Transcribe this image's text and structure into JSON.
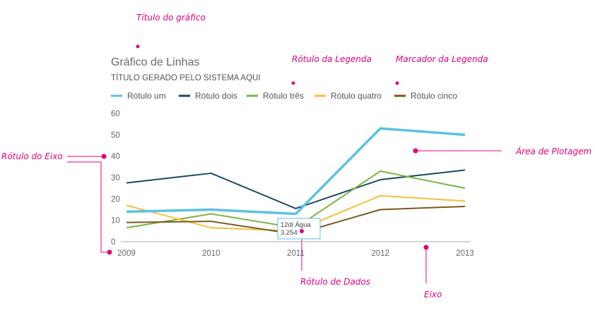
{
  "annotations": {
    "chart_title": "Título do gráfico",
    "legend_label": "Rótulo da Legenda",
    "legend_marker": "Marcador da Legenda",
    "axis_label": "Rótulo do Eixo",
    "plot_area": "Área de Plotagem",
    "data_label": "Rótulo de Dados",
    "axis": "Eixo"
  },
  "annotation_color": "#e4007c",
  "chart_data": {
    "type": "line",
    "title": "Gráfico de Linhas",
    "subtitle": "TÍTULO GERADO PELO SISTEMA AQUI",
    "categories": [
      "2009",
      "2010",
      "2011",
      "2012",
      "2013"
    ],
    "ylim": [
      0,
      60
    ],
    "yticks": [
      0,
      10,
      20,
      30,
      40,
      50,
      60
    ],
    "grid": false,
    "legend_position": "top",
    "series": [
      {
        "name": "Rótulo um",
        "color": "#5bc2e0",
        "values": [
          14,
          15,
          13,
          53,
          50
        ],
        "emphasis": true
      },
      {
        "name": "Rótulo dois",
        "color": "#1e4a5e",
        "values": [
          27.5,
          32,
          15.5,
          29,
          33.5
        ]
      },
      {
        "name": "Rótulo três",
        "color": "#7cb342",
        "values": [
          6.5,
          13,
          6.5,
          33,
          25
        ]
      },
      {
        "name": "Rótulo quatro",
        "color": "#f5c13a",
        "values": [
          17,
          6.5,
          5,
          21.5,
          19
        ]
      },
      {
        "name": "Rótulo cinco",
        "color": "#7a5a1e",
        "values": [
          9,
          9.5,
          3.5,
          15,
          16.5
        ]
      }
    ],
    "tooltip": {
      "line1": "12dl Água",
      "line2": "3.254"
    }
  }
}
